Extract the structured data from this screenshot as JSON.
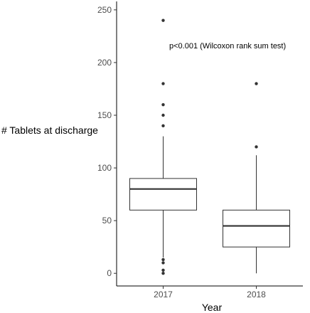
{
  "chart_data": {
    "type": "box",
    "title": "",
    "xlabel": "Year",
    "ylabel": "# Tablets at discharge",
    "ylim": [
      -12,
      258
    ],
    "yticks": [
      0,
      50,
      100,
      150,
      200,
      250
    ],
    "grid": false,
    "annotation": "p<0.001 (Wilcoxon rank sum test)",
    "categories": [
      "2017",
      "2018"
    ],
    "boxes": [
      {
        "category": "2017",
        "whisker_low": 15,
        "q1": 60,
        "median": 80,
        "q3": 90,
        "whisker_high": 130,
        "outliers": [
          0,
          3,
          10,
          13,
          140,
          150,
          160,
          180,
          240
        ]
      },
      {
        "category": "2018",
        "whisker_low": 0,
        "q1": 25,
        "median": 45,
        "q3": 60,
        "whisker_high": 112,
        "outliers": [
          120,
          180
        ]
      }
    ]
  }
}
